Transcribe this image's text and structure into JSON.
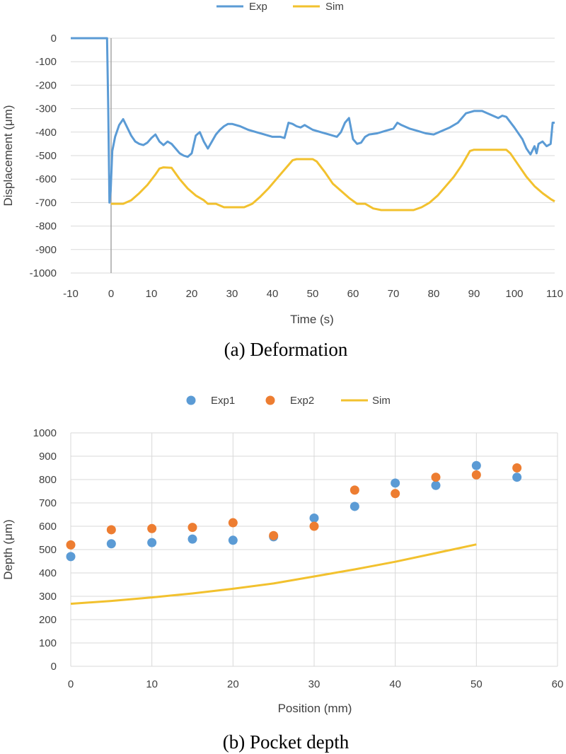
{
  "colors": {
    "exp": "#5b9bd5",
    "exp2": "#ed7d31",
    "sim": "#f2c12e",
    "grid": "#d9d9d9",
    "text": "#404040"
  },
  "chart_data": [
    {
      "type": "line",
      "caption": "(a)  Deformation",
      "xlabel": "Time (s)",
      "ylabel": "Displacement (μm)",
      "xlim": [
        -10,
        110
      ],
      "ylim": [
        -1000,
        0
      ],
      "x_ticks": [
        "-10",
        "0",
        "10",
        "20",
        "30",
        "40",
        "50",
        "60",
        "70",
        "80",
        "90",
        "100",
        "110"
      ],
      "y_ticks": [
        "0",
        "-100",
        "-200",
        "-300",
        "-400",
        "-500",
        "-600",
        "-700",
        "-800",
        "-900",
        "-1000"
      ],
      "grid": "horizontal",
      "legend": "top",
      "series": [
        {
          "name": "Exp",
          "points": [
            [
              -10,
              0
            ],
            [
              -1,
              0
            ],
            [
              -0.7,
              -300
            ],
            [
              -0.4,
              -700
            ],
            [
              -0.1,
              -650
            ],
            [
              0.3,
              -480
            ],
            [
              1,
              -420
            ],
            [
              2,
              -370
            ],
            [
              3,
              -345
            ],
            [
              4,
              -380
            ],
            [
              5,
              -415
            ],
            [
              6,
              -440
            ],
            [
              7,
              -450
            ],
            [
              8,
              -455
            ],
            [
              9,
              -445
            ],
            [
              10,
              -425
            ],
            [
              11,
              -410
            ],
            [
              12,
              -440
            ],
            [
              13,
              -455
            ],
            [
              14,
              -440
            ],
            [
              15,
              -450
            ],
            [
              16,
              -470
            ],
            [
              17,
              -490
            ],
            [
              18,
              -500
            ],
            [
              19,
              -505
            ],
            [
              20,
              -490
            ],
            [
              21,
              -415
            ],
            [
              22,
              -400
            ],
            [
              23,
              -440
            ],
            [
              24,
              -470
            ],
            [
              25,
              -440
            ],
            [
              26,
              -410
            ],
            [
              27,
              -390
            ],
            [
              28,
              -375
            ],
            [
              29,
              -365
            ],
            [
              30,
              -365
            ],
            [
              32,
              -375
            ],
            [
              34,
              -390
            ],
            [
              36,
              -400
            ],
            [
              38,
              -410
            ],
            [
              40,
              -420
            ],
            [
              42,
              -420
            ],
            [
              43,
              -425
            ],
            [
              44,
              -360
            ],
            [
              45,
              -365
            ],
            [
              46,
              -375
            ],
            [
              47,
              -380
            ],
            [
              48,
              -370
            ],
            [
              49,
              -380
            ],
            [
              50,
              -390
            ],
            [
              52,
              -400
            ],
            [
              54,
              -410
            ],
            [
              56,
              -420
            ],
            [
              57,
              -400
            ],
            [
              58,
              -360
            ],
            [
              59,
              -340
            ],
            [
              60,
              -430
            ],
            [
              61,
              -450
            ],
            [
              62,
              -445
            ],
            [
              63,
              -420
            ],
            [
              64,
              -410
            ],
            [
              66,
              -405
            ],
            [
              68,
              -395
            ],
            [
              70,
              -385
            ],
            [
              71,
              -360
            ],
            [
              72,
              -370
            ],
            [
              74,
              -385
            ],
            [
              76,
              -395
            ],
            [
              78,
              -405
            ],
            [
              80,
              -410
            ],
            [
              82,
              -395
            ],
            [
              84,
              -380
            ],
            [
              86,
              -360
            ],
            [
              88,
              -320
            ],
            [
              90,
              -310
            ],
            [
              92,
              -310
            ],
            [
              94,
              -325
            ],
            [
              96,
              -340
            ],
            [
              97,
              -330
            ],
            [
              98,
              -335
            ],
            [
              100,
              -380
            ],
            [
              102,
              -430
            ],
            [
              103,
              -470
            ],
            [
              104,
              -495
            ],
            [
              105,
              -460
            ],
            [
              105.5,
              -490
            ],
            [
              106,
              -450
            ],
            [
              107,
              -440
            ],
            [
              108,
              -460
            ],
            [
              109,
              -450
            ],
            [
              109.5,
              -360
            ],
            [
              110,
              -360
            ]
          ]
        },
        {
          "name": "Sim",
          "points": [
            [
              0,
              -705
            ],
            [
              3,
              -705
            ],
            [
              5,
              -690
            ],
            [
              7,
              -660
            ],
            [
              9,
              -625
            ],
            [
              11,
              -580
            ],
            [
              12,
              -555
            ],
            [
              13,
              -550
            ],
            [
              15,
              -552
            ],
            [
              17,
              -600
            ],
            [
              19,
              -640
            ],
            [
              21,
              -670
            ],
            [
              23,
              -690
            ],
            [
              24,
              -705
            ],
            [
              26,
              -705
            ],
            [
              28,
              -720
            ],
            [
              33,
              -720
            ],
            [
              35,
              -705
            ],
            [
              37,
              -675
            ],
            [
              39,
              -640
            ],
            [
              41,
              -600
            ],
            [
              43,
              -560
            ],
            [
              45,
              -520
            ],
            [
              46,
              -515
            ],
            [
              50,
              -515
            ],
            [
              51,
              -525
            ],
            [
              53,
              -570
            ],
            [
              55,
              -620
            ],
            [
              57,
              -650
            ],
            [
              59,
              -680
            ],
            [
              61,
              -705
            ],
            [
              63,
              -705
            ],
            [
              65,
              -725
            ],
            [
              67,
              -732
            ],
            [
              75,
              -732
            ],
            [
              77,
              -720
            ],
            [
              79,
              -700
            ],
            [
              81,
              -670
            ],
            [
              83,
              -630
            ],
            [
              85,
              -590
            ],
            [
              87,
              -540
            ],
            [
              89,
              -480
            ],
            [
              90,
              -475
            ],
            [
              98,
              -475
            ],
            [
              99,
              -490
            ],
            [
              101,
              -540
            ],
            [
              103,
              -590
            ],
            [
              105,
              -630
            ],
            [
              107,
              -660
            ],
            [
              109,
              -685
            ],
            [
              110,
              -695
            ]
          ]
        }
      ]
    },
    {
      "type": "scatter",
      "caption": "(b)  Pocket  depth",
      "xlabel": "Position (mm)",
      "ylabel": "Depth (μm)",
      "xlim": [
        0,
        60
      ],
      "ylim": [
        0,
        1000
      ],
      "x_ticks": [
        "0",
        "10",
        "20",
        "30",
        "40",
        "50",
        "60"
      ],
      "y_ticks": [
        "0",
        "100",
        "200",
        "300",
        "400",
        "500",
        "600",
        "700",
        "800",
        "900",
        "1000"
      ],
      "grid": "both",
      "legend": "top",
      "series": [
        {
          "name": "Exp1",
          "kind": "scatter",
          "x": [
            0,
            5,
            10,
            15,
            20,
            25,
            30,
            35,
            40,
            45,
            50,
            55
          ],
          "y": [
            470,
            525,
            530,
            545,
            540,
            555,
            635,
            685,
            785,
            775,
            860,
            810
          ]
        },
        {
          "name": "Exp2",
          "kind": "scatter",
          "x": [
            0,
            5,
            10,
            15,
            20,
            25,
            30,
            35,
            40,
            45,
            50,
            55
          ],
          "y": [
            520,
            585,
            590,
            595,
            615,
            560,
            600,
            755,
            740,
            810,
            820,
            850
          ]
        },
        {
          "name": "Sim",
          "kind": "line",
          "x": [
            0,
            5,
            10,
            15,
            20,
            25,
            30,
            35,
            40,
            45,
            50
          ],
          "y": [
            268,
            280,
            295,
            312,
            332,
            355,
            385,
            415,
            448,
            485,
            522
          ]
        }
      ]
    }
  ]
}
